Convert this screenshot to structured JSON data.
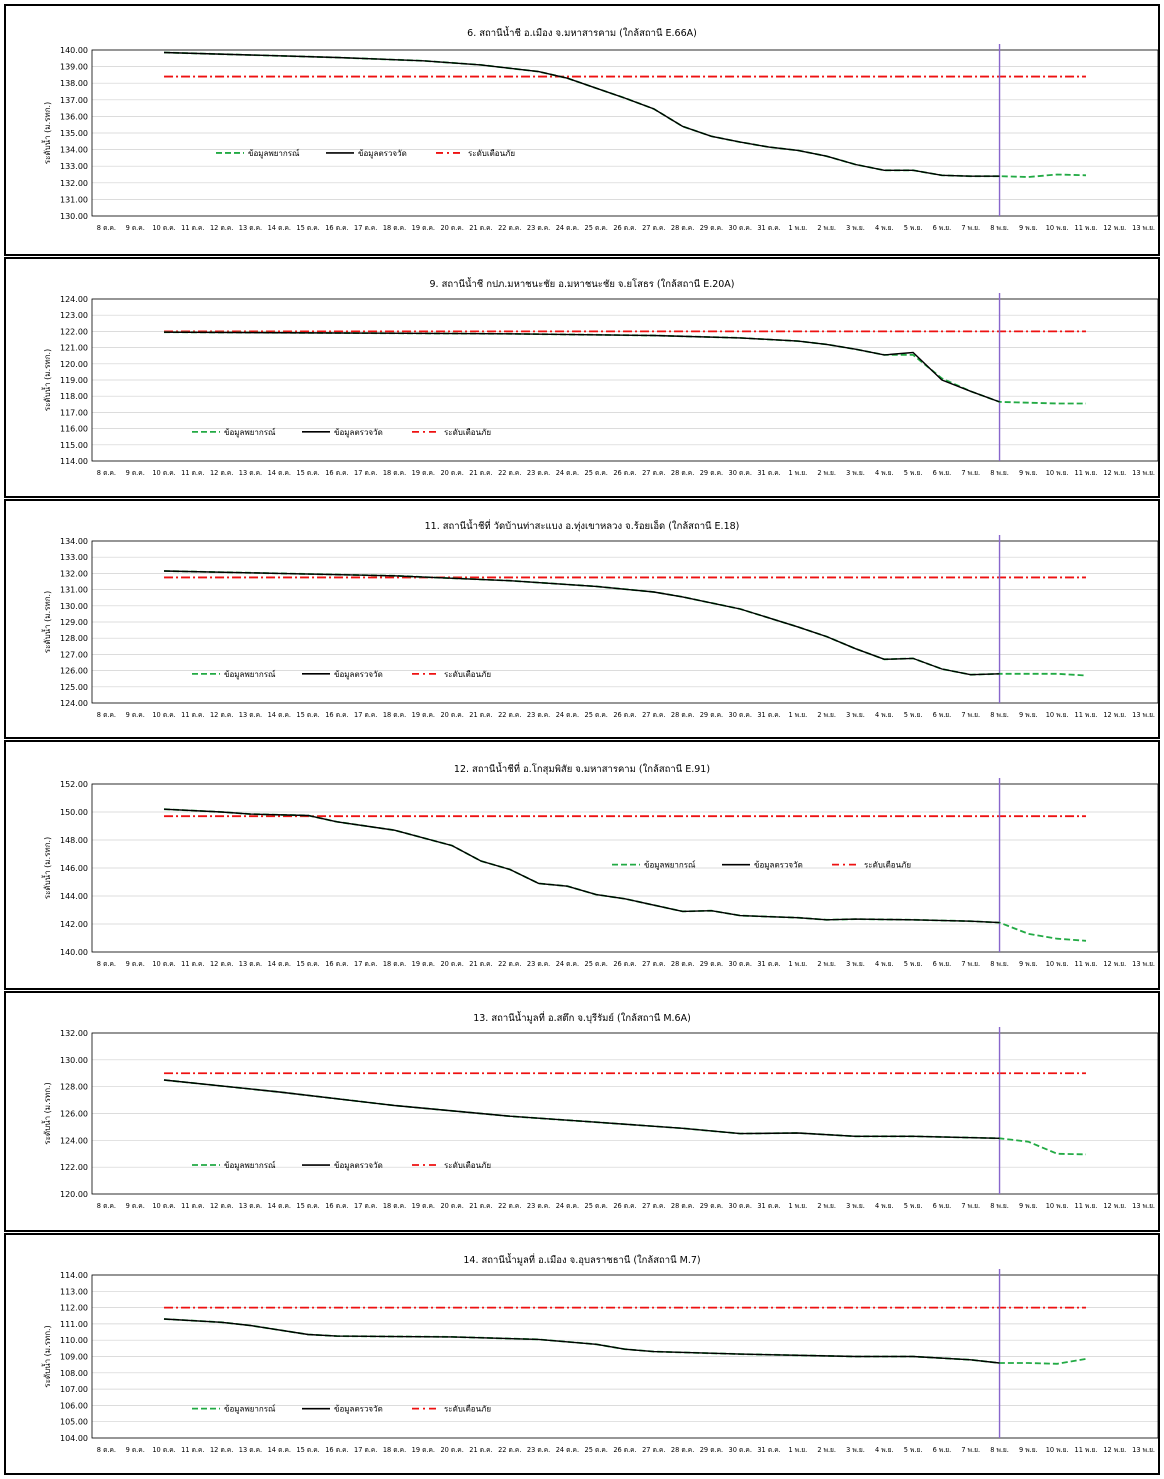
{
  "x_categories": [
    "8 ต.ค.",
    "9 ต.ค.",
    "10 ต.ค.",
    "11 ต.ค.",
    "12 ต.ค.",
    "13 ต.ค.",
    "14 ต.ค.",
    "15 ต.ค.",
    "16 ต.ค.",
    "17 ต.ค.",
    "18 ต.ค.",
    "19 ต.ค.",
    "20 ต.ค.",
    "21 ต.ค.",
    "22 ต.ค.",
    "23 ต.ค.",
    "24 ต.ค.",
    "25 ต.ค.",
    "26 ต.ค.",
    "27 ต.ค.",
    "28 ต.ค.",
    "29 ต.ค.",
    "30 ต.ค.",
    "31 ต.ค.",
    "1 พ.ย.",
    "2 พ.ย.",
    "3 พ.ย.",
    "4 พ.ย.",
    "5 พ.ย.",
    "6 พ.ย.",
    "7 พ.ย.",
    "8 พ.ย.",
    "9 พ.ย.",
    "10 พ.ย.",
    "11 พ.ย.",
    "12 พ.ย.",
    "13 พ.ย."
  ],
  "legend_labels": {
    "forecast": "ข้อมูลพยากรณ์",
    "observed": "ข้อมูลตรวจวัด",
    "warning": "ระดับเตือนภัย"
  },
  "colors": {
    "forecast": "#22aa44",
    "observed": "#000000",
    "warning": "#ee1111",
    "today": "#8866cc",
    "grid": "#d0d0d0"
  },
  "ylabel": "ระดับน้ำ (ม.รทก.)",
  "chart_data": [
    {
      "type": "line",
      "title": "6. สถานีน้ำชี อ.เมือง จ.มหาสารคาม (ใกล้สถานี E.66A)",
      "ylim": [
        130,
        140
      ],
      "ystep": 1,
      "decimals": 2,
      "warning": 138.4,
      "today": "8 พ.ย.",
      "legend_pos": "center-left",
      "observed": [
        [
          2,
          139.85
        ],
        [
          5,
          139.7
        ],
        [
          8,
          139.55
        ],
        [
          11,
          139.35
        ],
        [
          13,
          139.1
        ],
        [
          15,
          138.7
        ],
        [
          16,
          138.3
        ],
        [
          17,
          137.7
        ],
        [
          18,
          137.1
        ],
        [
          19,
          136.45
        ],
        [
          20,
          135.4
        ],
        [
          21,
          134.8
        ],
        [
          22,
          134.45
        ],
        [
          23,
          134.15
        ],
        [
          24,
          133.95
        ],
        [
          25,
          133.6
        ],
        [
          26,
          133.1
        ],
        [
          27,
          132.75
        ],
        [
          28,
          132.75
        ],
        [
          29,
          132.45
        ],
        [
          30,
          132.4
        ],
        [
          31,
          132.4
        ]
      ],
      "forecast": [
        [
          2,
          139.85
        ],
        [
          5,
          139.7
        ],
        [
          8,
          139.55
        ],
        [
          11,
          139.35
        ],
        [
          13,
          139.1
        ],
        [
          15,
          138.7
        ],
        [
          16,
          138.3
        ],
        [
          17,
          137.7
        ],
        [
          18,
          137.1
        ],
        [
          19,
          136.45
        ],
        [
          20,
          135.4
        ],
        [
          21,
          134.8
        ],
        [
          22,
          134.45
        ],
        [
          23,
          134.15
        ],
        [
          24,
          133.95
        ],
        [
          25,
          133.6
        ],
        [
          26,
          133.1
        ],
        [
          27,
          132.75
        ],
        [
          28,
          132.75
        ],
        [
          29,
          132.45
        ],
        [
          30,
          132.4
        ],
        [
          31,
          132.4
        ],
        [
          32,
          132.35
        ],
        [
          33,
          132.5
        ],
        [
          34,
          132.45
        ]
      ]
    },
    {
      "type": "line",
      "title": "9. สถานีน้ำชี กปภ.มหาชนะชัย อ.มหาชนะชัย จ.ยโสธร (ใกล้สถานี E.20A)",
      "ylim": [
        114,
        124
      ],
      "ystep": 1,
      "decimals": 2,
      "warning": 122.0,
      "today": "8 พ.ย.",
      "legend_pos": "bottom-left",
      "observed": [
        [
          2,
          121.95
        ],
        [
          8,
          121.9
        ],
        [
          14,
          121.85
        ],
        [
          19,
          121.75
        ],
        [
          22,
          121.6
        ],
        [
          24,
          121.4
        ],
        [
          25,
          121.2
        ],
        [
          26,
          120.9
        ],
        [
          27,
          120.55
        ],
        [
          28,
          120.7
        ],
        [
          29,
          119.0
        ],
        [
          30,
          118.3
        ],
        [
          31,
          117.65
        ]
      ],
      "forecast": [
        [
          2,
          121.95
        ],
        [
          8,
          121.9
        ],
        [
          14,
          121.85
        ],
        [
          19,
          121.75
        ],
        [
          22,
          121.6
        ],
        [
          24,
          121.4
        ],
        [
          25,
          121.2
        ],
        [
          26,
          120.9
        ],
        [
          27,
          120.55
        ],
        [
          28,
          120.55
        ],
        [
          29,
          119.1
        ],
        [
          30,
          118.3
        ],
        [
          31,
          117.65
        ],
        [
          32,
          117.6
        ],
        [
          33,
          117.55
        ],
        [
          34,
          117.55
        ]
      ]
    },
    {
      "type": "line",
      "title": "11. สถานีน้ำชีที่ วัดบ้านท่าสะแบง อ.ทุ่งเขาหลวง จ.ร้อยเอ็ด (ใกล้สถานี E.18)",
      "ylim": [
        124,
        134
      ],
      "ystep": 1,
      "decimals": 2,
      "warning": 131.75,
      "today": "8 พ.ย.",
      "legend_pos": "bottom-left",
      "observed": [
        [
          2,
          132.15
        ],
        [
          6,
          132.0
        ],
        [
          10,
          131.85
        ],
        [
          14,
          131.55
        ],
        [
          17,
          131.2
        ],
        [
          19,
          130.85
        ],
        [
          20,
          130.55
        ],
        [
          22,
          129.8
        ],
        [
          24,
          128.7
        ],
        [
          25,
          128.1
        ],
        [
          26,
          127.35
        ],
        [
          27,
          126.7
        ],
        [
          28,
          126.75
        ],
        [
          29,
          126.1
        ],
        [
          30,
          125.75
        ],
        [
          31,
          125.8
        ]
      ],
      "forecast": [
        [
          2,
          132.15
        ],
        [
          6,
          132.0
        ],
        [
          10,
          131.85
        ],
        [
          14,
          131.55
        ],
        [
          17,
          131.2
        ],
        [
          19,
          130.85
        ],
        [
          20,
          130.55
        ],
        [
          22,
          129.8
        ],
        [
          24,
          128.7
        ],
        [
          25,
          128.1
        ],
        [
          26,
          127.35
        ],
        [
          27,
          126.7
        ],
        [
          28,
          126.75
        ],
        [
          29,
          126.1
        ],
        [
          30,
          125.75
        ],
        [
          31,
          125.8
        ],
        [
          32,
          125.8
        ],
        [
          33,
          125.8
        ],
        [
          34,
          125.7
        ]
      ]
    },
    {
      "type": "line",
      "title": "12. สถานีน้ำชีที่ อ.โกสุมพิสัย จ.มหาสารคาม (ใกล้สถานี E.91)",
      "ylim": [
        140,
        152
      ],
      "ystep": 2,
      "decimals": 2,
      "warning": 149.7,
      "today": "8 พ.ย.",
      "legend_pos": "center-right",
      "observed": [
        [
          2,
          150.2
        ],
        [
          4,
          150.0
        ],
        [
          5,
          149.85
        ],
        [
          7,
          149.75
        ],
        [
          8,
          149.3
        ],
        [
          10,
          148.7
        ],
        [
          12,
          147.6
        ],
        [
          13,
          146.5
        ],
        [
          14,
          145.9
        ],
        [
          15,
          144.9
        ],
        [
          16,
          144.7
        ],
        [
          17,
          144.1
        ],
        [
          18,
          143.8
        ],
        [
          20,
          142.9
        ],
        [
          21,
          142.95
        ],
        [
          22,
          142.6
        ],
        [
          24,
          142.45
        ],
        [
          25,
          142.3
        ],
        [
          26,
          142.35
        ],
        [
          28,
          142.3
        ],
        [
          30,
          142.2
        ],
        [
          31,
          142.1
        ]
      ],
      "forecast": [
        [
          2,
          150.2
        ],
        [
          4,
          150.0
        ],
        [
          5,
          149.85
        ],
        [
          7,
          149.75
        ],
        [
          8,
          149.3
        ],
        [
          10,
          148.7
        ],
        [
          12,
          147.6
        ],
        [
          13,
          146.5
        ],
        [
          14,
          145.9
        ],
        [
          15,
          144.9
        ],
        [
          16,
          144.7
        ],
        [
          17,
          144.1
        ],
        [
          18,
          143.8
        ],
        [
          20,
          142.9
        ],
        [
          21,
          142.95
        ],
        [
          22,
          142.6
        ],
        [
          24,
          142.45
        ],
        [
          25,
          142.3
        ],
        [
          26,
          142.35
        ],
        [
          28,
          142.3
        ],
        [
          30,
          142.2
        ],
        [
          31,
          142.1
        ],
        [
          32,
          141.3
        ],
        [
          33,
          140.95
        ],
        [
          34,
          140.8
        ]
      ]
    },
    {
      "type": "line",
      "title": "13. สถานีน้ำมูลที่ อ.สตึก จ.บุรีรัมย์ (ใกล้สถานี M.6A)",
      "ylim": [
        120,
        132
      ],
      "ystep": 2,
      "decimals": 2,
      "warning": 129.0,
      "today": "8 พ.ย.",
      "legend_pos": "bottom-left",
      "observed": [
        [
          2,
          128.5
        ],
        [
          6,
          127.6
        ],
        [
          10,
          126.6
        ],
        [
          14,
          125.8
        ],
        [
          17,
          125.35
        ],
        [
          20,
          124.9
        ],
        [
          22,
          124.5
        ],
        [
          24,
          124.55
        ],
        [
          26,
          124.3
        ],
        [
          28,
          124.3
        ],
        [
          31,
          124.15
        ]
      ],
      "forecast": [
        [
          2,
          128.5
        ],
        [
          6,
          127.6
        ],
        [
          10,
          126.6
        ],
        [
          14,
          125.8
        ],
        [
          17,
          125.35
        ],
        [
          20,
          124.9
        ],
        [
          22,
          124.5
        ],
        [
          24,
          124.55
        ],
        [
          26,
          124.3
        ],
        [
          28,
          124.3
        ],
        [
          31,
          124.15
        ],
        [
          32,
          123.9
        ],
        [
          33,
          123.0
        ],
        [
          34,
          122.95
        ]
      ]
    },
    {
      "type": "line",
      "title": "14. สถานีน้ำมูลที่ อ.เมือง จ.อุบลราชธานี (ใกล้สถานี M.7)",
      "ylim": [
        104,
        114
      ],
      "ystep": 1,
      "decimals": 2,
      "warning": 112.0,
      "today": "8 พ.ย.",
      "legend_pos": "bottom-left",
      "observed": [
        [
          2,
          111.3
        ],
        [
          4,
          111.1
        ],
        [
          5,
          110.9
        ],
        [
          7,
          110.35
        ],
        [
          8,
          110.25
        ],
        [
          12,
          110.2
        ],
        [
          15,
          110.05
        ],
        [
          17,
          109.75
        ],
        [
          18,
          109.45
        ],
        [
          19,
          109.3
        ],
        [
          22,
          109.15
        ],
        [
          26,
          109.0
        ],
        [
          28,
          109.0
        ],
        [
          30,
          108.8
        ],
        [
          31,
          108.6
        ]
      ],
      "forecast": [
        [
          2,
          111.3
        ],
        [
          4,
          111.1
        ],
        [
          5,
          110.9
        ],
        [
          7,
          110.35
        ],
        [
          8,
          110.25
        ],
        [
          12,
          110.2
        ],
        [
          15,
          110.05
        ],
        [
          17,
          109.75
        ],
        [
          18,
          109.45
        ],
        [
          19,
          109.3
        ],
        [
          22,
          109.15
        ],
        [
          26,
          109.0
        ],
        [
          28,
          109.0
        ],
        [
          30,
          108.8
        ],
        [
          31,
          108.6
        ],
        [
          32,
          108.6
        ],
        [
          33,
          108.55
        ],
        [
          34,
          108.85
        ]
      ]
    }
  ]
}
